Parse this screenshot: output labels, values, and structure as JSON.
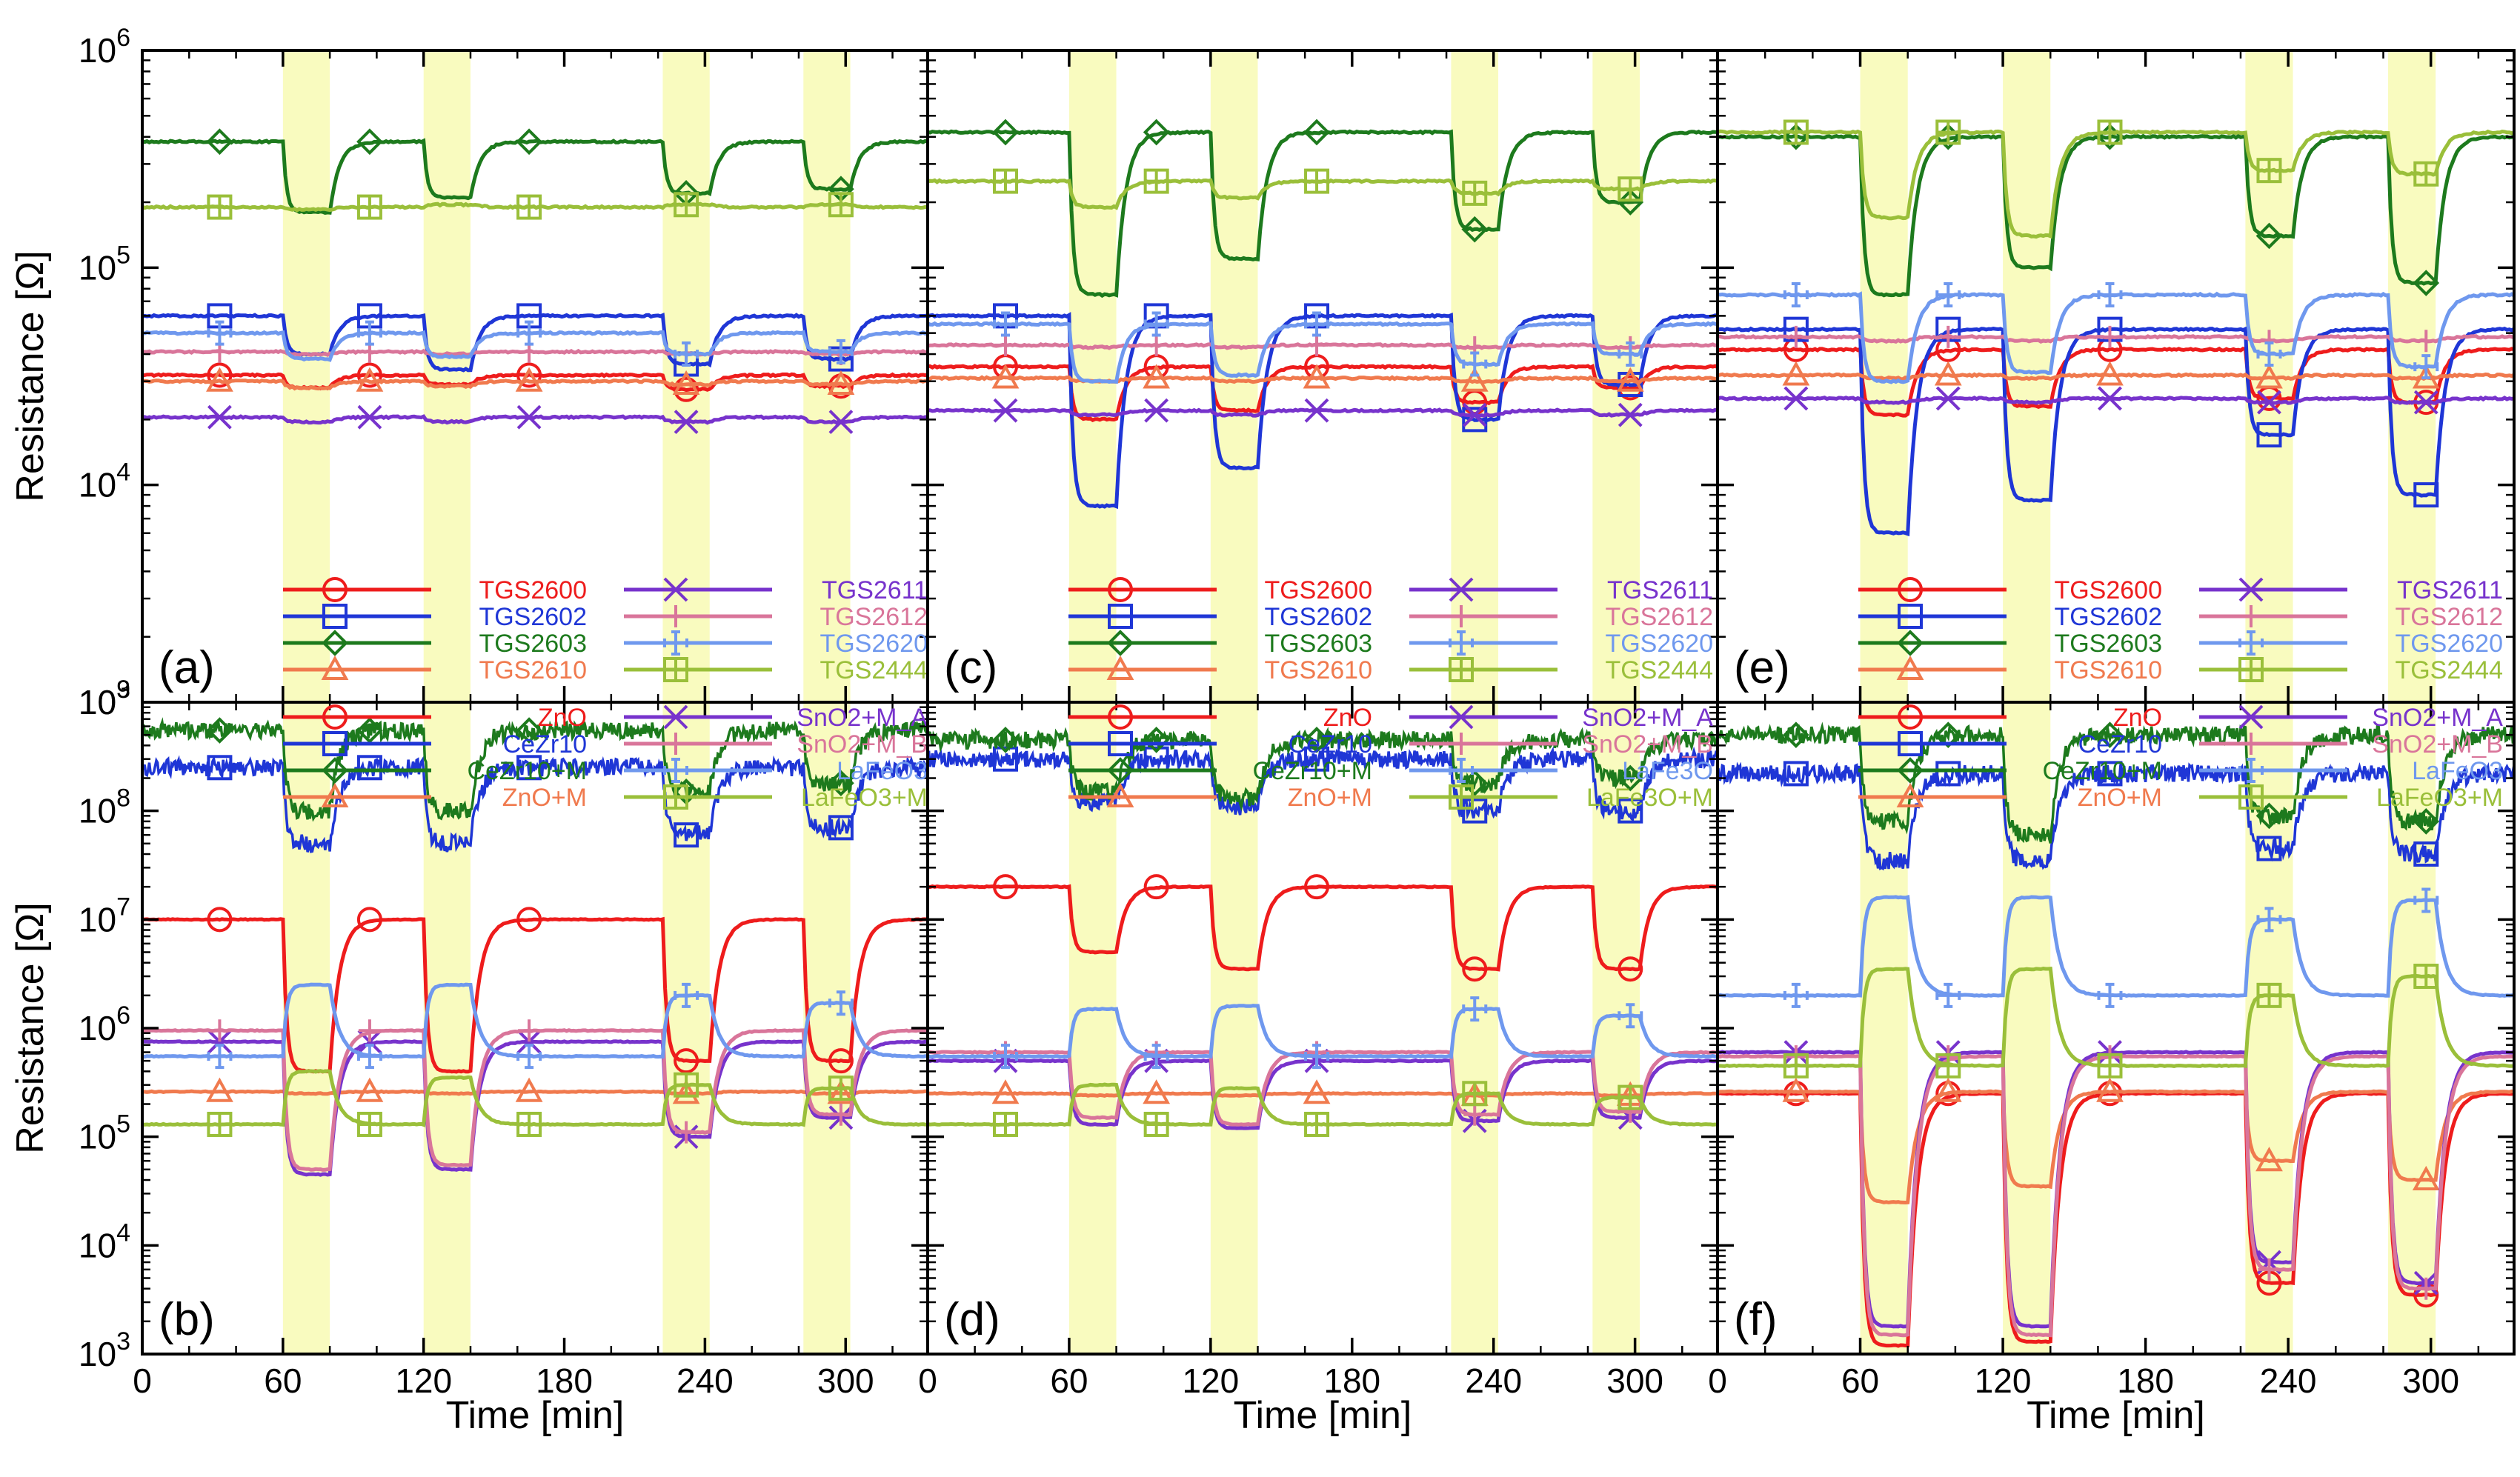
{
  "chart_data": [
    {
      "type": "line",
      "panel": "(a)",
      "y_scale": "log",
      "xlim": [
        0,
        335
      ],
      "ylim": [
        1000,
        1000000
      ],
      "x_ticks": [
        0,
        60,
        120,
        180,
        240,
        300
      ],
      "y_tick_exponents": [
        3,
        4,
        5,
        6
      ],
      "xlabel": "",
      "ylabel": "Resistance [Ω]",
      "exposure_windows": [
        [
          60,
          80
        ],
        [
          120,
          140
        ],
        [
          222,
          242
        ],
        [
          282,
          302
        ]
      ],
      "legend": "bottom-center, two columns",
      "series": [
        {
          "name": "TGS2600",
          "color": "#ee1c1c",
          "marker": "circle",
          "baseline": 32000,
          "exposure_values": [
            28000,
            29000,
            27500,
            28500
          ]
        },
        {
          "name": "TGS2602",
          "color": "#1f36d6",
          "marker": "square",
          "baseline": 60000,
          "exposure_values": [
            40000,
            34000,
            36000,
            38000
          ]
        },
        {
          "name": "TGS2603",
          "color": "#1d7a1d",
          "marker": "diamond",
          "baseline": 380000,
          "exposure_values": [
            180000,
            210000,
            220000,
            230000
          ]
        },
        {
          "name": "TGS2610",
          "color": "#f07a4e",
          "marker": "triangle",
          "baseline": 30000,
          "exposure_values": [
            28000,
            28500,
            29000,
            29000
          ]
        },
        {
          "name": "TGS2611",
          "color": "#7733cc",
          "marker": "x",
          "baseline": 20500,
          "exposure_values": [
            19500,
            19500,
            19500,
            19500
          ]
        },
        {
          "name": "TGS2612",
          "color": "#d9759a",
          "marker": "plus",
          "baseline": 41000,
          "exposure_values": [
            40000,
            40000,
            40000,
            40000
          ]
        },
        {
          "name": "TGS2620",
          "color": "#6f98ee",
          "marker": "cross",
          "baseline": 50000,
          "exposure_values": [
            38000,
            39000,
            40000,
            41000
          ]
        },
        {
          "name": "TGS2444",
          "color": "#9abf3a",
          "marker": "boxplus",
          "baseline": 190000,
          "exposure_values": [
            185000,
            195000,
            195000,
            195000
          ]
        }
      ]
    },
    {
      "type": "line",
      "panel": "(b)",
      "y_scale": "log",
      "xlim": [
        0,
        335
      ],
      "ylim": [
        1000,
        1000000000
      ],
      "x_ticks": [
        0,
        60,
        120,
        180,
        240,
        300
      ],
      "y_tick_exponents": [
        3,
        4,
        5,
        6,
        7,
        8,
        9
      ],
      "xlabel": "Time [min]",
      "ylabel": "Resistance [Ω]",
      "exposure_windows": [
        [
          60,
          80
        ],
        [
          120,
          140
        ],
        [
          222,
          242
        ],
        [
          282,
          302
        ]
      ],
      "legend": "top-center, two columns",
      "series": [
        {
          "name": "ZnO",
          "color": "#ee1c1c",
          "marker": "circle",
          "baseline": 10000000,
          "exposure_values": [
            400000,
            400000,
            500000,
            500000
          ]
        },
        {
          "name": "CeZr10",
          "color": "#1f36d6",
          "marker": "square",
          "baseline": 250000000,
          "exposure_values": [
            50000000,
            50000000,
            60000000,
            70000000
          ]
        },
        {
          "name": "CeZr10+M",
          "color": "#1d7a1d",
          "marker": "diamond",
          "baseline": 550000000,
          "exposure_values": [
            100000000,
            100000000,
            150000000,
            180000000
          ]
        },
        {
          "name": "ZnO+M",
          "color": "#f07a4e",
          "marker": "triangle",
          "baseline": 260000,
          "exposure_values": [
            250000,
            250000,
            250000,
            250000
          ]
        },
        {
          "name": "SnO2+M_A",
          "color": "#7733cc",
          "marker": "x",
          "baseline": 750000,
          "exposure_values": [
            45000,
            50000,
            100000,
            150000
          ]
        },
        {
          "name": "SnO2+M_B",
          "color": "#d9759a",
          "marker": "plus",
          "baseline": 950000,
          "exposure_values": [
            50000,
            55000,
            110000,
            160000
          ]
        },
        {
          "name": "LaFeO3",
          "color": "#6f98ee",
          "marker": "cross",
          "baseline": 550000,
          "exposure_values": [
            2500000,
            2500000,
            2000000,
            1700000
          ]
        },
        {
          "name": "LaFeO3+M",
          "color": "#9abf3a",
          "marker": "boxplus",
          "baseline": 130000,
          "exposure_values": [
            400000,
            350000,
            300000,
            280000
          ]
        }
      ]
    },
    {
      "type": "line",
      "panel": "(c)",
      "y_scale": "log",
      "xlim": [
        0,
        335
      ],
      "ylim": [
        1000,
        1000000
      ],
      "x_ticks": [
        0,
        60,
        120,
        180,
        240,
        300
      ],
      "y_tick_exponents": [
        3,
        4,
        5,
        6
      ],
      "xlabel": "",
      "ylabel": "",
      "exposure_windows": [
        [
          60,
          80
        ],
        [
          120,
          140
        ],
        [
          222,
          242
        ],
        [
          282,
          302
        ]
      ],
      "legend": "bottom-center, two columns",
      "series": [
        {
          "name": "TGS2600",
          "color": "#ee1c1c",
          "marker": "circle",
          "baseline": 35000,
          "exposure_values": [
            20000,
            22000,
            24000,
            28000
          ]
        },
        {
          "name": "TGS2602",
          "color": "#1f36d6",
          "marker": "square",
          "baseline": 60000,
          "exposure_values": [
            8000,
            12000,
            20000,
            29000
          ]
        },
        {
          "name": "TGS2603",
          "color": "#1d7a1d",
          "marker": "diamond",
          "baseline": 420000,
          "exposure_values": [
            75000,
            110000,
            150000,
            200000
          ]
        },
        {
          "name": "TGS2610",
          "color": "#f07a4e",
          "marker": "triangle",
          "baseline": 31000,
          "exposure_values": [
            30000,
            30000,
            30000,
            30000
          ]
        },
        {
          "name": "TGS2611",
          "color": "#7733cc",
          "marker": "x",
          "baseline": 22000,
          "exposure_values": [
            21000,
            21000,
            21000,
            21000
          ]
        },
        {
          "name": "TGS2612",
          "color": "#d9759a",
          "marker": "plus",
          "baseline": 44000,
          "exposure_values": [
            43000,
            43000,
            43000,
            43000
          ]
        },
        {
          "name": "TGS2620",
          "color": "#6f98ee",
          "marker": "cross",
          "baseline": 55000,
          "exposure_values": [
            30000,
            32000,
            36000,
            40000
          ]
        },
        {
          "name": "TGS2444",
          "color": "#9abf3a",
          "marker": "boxplus",
          "baseline": 250000,
          "exposure_values": [
            190000,
            210000,
            220000,
            230000
          ]
        }
      ]
    },
    {
      "type": "line",
      "panel": "(d)",
      "y_scale": "log",
      "xlim": [
        0,
        335
      ],
      "ylim": [
        1000,
        1000000000
      ],
      "x_ticks": [
        0,
        60,
        120,
        180,
        240,
        300
      ],
      "y_tick_exponents": [
        3,
        4,
        5,
        6,
        7,
        8,
        9
      ],
      "xlabel": "Time [min]",
      "ylabel": "",
      "exposure_windows": [
        [
          60,
          80
        ],
        [
          120,
          140
        ],
        [
          222,
          242
        ],
        [
          282,
          302
        ]
      ],
      "legend": "top-center, two columns",
      "series": [
        {
          "name": "ZnO",
          "color": "#ee1c1c",
          "marker": "circle",
          "baseline": 20000000,
          "exposure_values": [
            5000000,
            3500000,
            3500000,
            3500000
          ]
        },
        {
          "name": "CeZr10",
          "color": "#1f36d6",
          "marker": "square",
          "baseline": 300000000,
          "exposure_values": [
            120000000,
            110000000,
            100000000,
            100000000
          ]
        },
        {
          "name": "CeZr10+M",
          "color": "#1d7a1d",
          "marker": "diamond",
          "baseline": 450000000,
          "exposure_values": [
            150000000,
            130000000,
            180000000,
            200000000
          ]
        },
        {
          "name": "ZnO+M",
          "color": "#f07a4e",
          "marker": "triangle",
          "baseline": 250000,
          "exposure_values": [
            240000,
            240000,
            240000,
            240000
          ]
        },
        {
          "name": "SnO2+M_A",
          "color": "#7733cc",
          "marker": "x",
          "baseline": 500000,
          "exposure_values": [
            130000,
            120000,
            140000,
            150000
          ]
        },
        {
          "name": "SnO2+M_B",
          "color": "#d9759a",
          "marker": "plus",
          "baseline": 600000,
          "exposure_values": [
            150000,
            130000,
            160000,
            170000
          ]
        },
        {
          "name": "LaFe3O",
          "color": "#6f98ee",
          "marker": "cross",
          "baseline": 550000,
          "exposure_values": [
            1500000,
            1600000,
            1500000,
            1300000
          ]
        },
        {
          "name": "LaFe3O+M",
          "color": "#9abf3a",
          "marker": "boxplus",
          "baseline": 130000,
          "exposure_values": [
            300000,
            280000,
            250000,
            230000
          ]
        }
      ]
    },
    {
      "type": "line",
      "panel": "(e)",
      "y_scale": "log",
      "xlim": [
        0,
        335
      ],
      "ylim": [
        1000,
        1000000
      ],
      "x_ticks": [
        0,
        60,
        120,
        180,
        240,
        300
      ],
      "y_tick_exponents": [
        3,
        4,
        5,
        6
      ],
      "xlabel": "",
      "ylabel": "",
      "exposure_windows": [
        [
          60,
          80
        ],
        [
          120,
          140
        ],
        [
          222,
          242
        ],
        [
          282,
          302
        ]
      ],
      "legend": "bottom-center, two columns",
      "series": [
        {
          "name": "TGS2600",
          "color": "#ee1c1c",
          "marker": "circle",
          "baseline": 42000,
          "exposure_values": [
            21000,
            23000,
            25000,
            24000
          ]
        },
        {
          "name": "TGS2602",
          "color": "#1f36d6",
          "marker": "square",
          "baseline": 52000,
          "exposure_values": [
            6000,
            8500,
            17000,
            9000
          ]
        },
        {
          "name": "TGS2603",
          "color": "#1d7a1d",
          "marker": "diamond",
          "baseline": 400000,
          "exposure_values": [
            75000,
            100000,
            140000,
            85000
          ]
        },
        {
          "name": "TGS2610",
          "color": "#f07a4e",
          "marker": "triangle",
          "baseline": 32000,
          "exposure_values": [
            31000,
            31000,
            31000,
            31000
          ]
        },
        {
          "name": "TGS2611",
          "color": "#7733cc",
          "marker": "x",
          "baseline": 25000,
          "exposure_values": [
            24000,
            24000,
            24000,
            24000
          ]
        },
        {
          "name": "TGS2612",
          "color": "#d9759a",
          "marker": "plus",
          "baseline": 48000,
          "exposure_values": [
            46000,
            46000,
            46000,
            46000
          ]
        },
        {
          "name": "TGS2620",
          "color": "#6f98ee",
          "marker": "cross",
          "baseline": 75000,
          "exposure_values": [
            30000,
            33000,
            40000,
            35000
          ]
        },
        {
          "name": "TGS2444",
          "color": "#9abf3a",
          "marker": "boxplus",
          "baseline": 420000,
          "exposure_values": [
            170000,
            140000,
            280000,
            270000
          ]
        }
      ]
    },
    {
      "type": "line",
      "panel": "(f)",
      "y_scale": "log",
      "xlim": [
        0,
        335
      ],
      "ylim": [
        1000,
        1000000000
      ],
      "x_ticks": [
        0,
        60,
        120,
        180,
        240,
        300
      ],
      "y_tick_exponents": [
        3,
        4,
        5,
        6,
        7,
        8,
        9
      ],
      "xlabel": "Time [min]",
      "ylabel": "",
      "exposure_windows": [
        [
          60,
          80
        ],
        [
          120,
          140
        ],
        [
          222,
          242
        ],
        [
          282,
          302
        ]
      ],
      "legend": "top-center, two columns",
      "series": [
        {
          "name": "ZnO",
          "color": "#ee1c1c",
          "marker": "circle",
          "baseline": 250000,
          "exposure_values": [
            1200,
            1300,
            4500,
            3500
          ]
        },
        {
          "name": "CeZr10",
          "color": "#1f36d6",
          "marker": "square",
          "baseline": 220000000,
          "exposure_values": [
            35000000,
            35000000,
            45000000,
            40000000
          ]
        },
        {
          "name": "CeZr10+M",
          "color": "#1d7a1d",
          "marker": "diamond",
          "baseline": 500000000,
          "exposure_values": [
            80000000,
            60000000,
            90000000,
            80000000
          ]
        },
        {
          "name": "ZnO+M",
          "color": "#f07a4e",
          "marker": "triangle",
          "baseline": 260000,
          "exposure_values": [
            25000,
            35000,
            60000,
            40000
          ]
        },
        {
          "name": "SnO2+M_A",
          "color": "#7733cc",
          "marker": "x",
          "baseline": 600000,
          "exposure_values": [
            1800,
            1800,
            7000,
            4500
          ]
        },
        {
          "name": "SnO2+M_B",
          "color": "#d9759a",
          "marker": "plus",
          "baseline": 550000,
          "exposure_values": [
            1500,
            1500,
            6000,
            4000
          ]
        },
        {
          "name": "LaFeO3",
          "color": "#6f98ee",
          "marker": "cross",
          "baseline": 2000000,
          "exposure_values": [
            16000000,
            16000000,
            10000000,
            15000000
          ]
        },
        {
          "name": "LaFeO3+M",
          "color": "#9abf3a",
          "marker": "boxplus",
          "baseline": 450000,
          "exposure_values": [
            3500000,
            3500000,
            2000000,
            3000000
          ]
        }
      ]
    }
  ],
  "style": {
    "exposure_fill": "#f9fbbf",
    "axis_color": "#000000"
  }
}
